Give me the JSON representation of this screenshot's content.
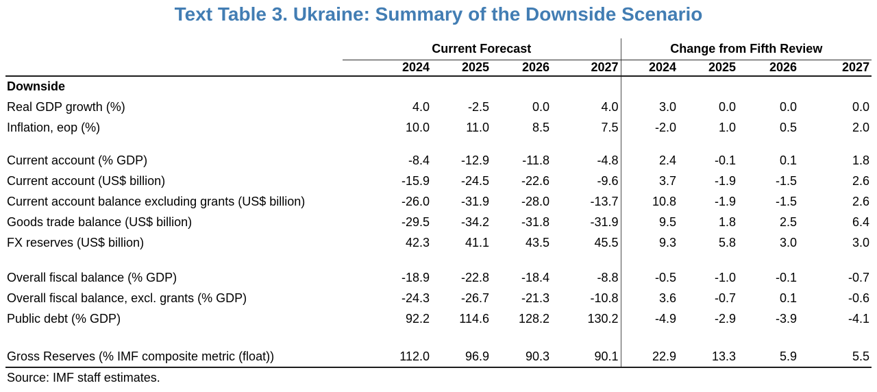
{
  "title": "Text Table 3. Ukraine: Summary of the Downside Scenario",
  "colors": {
    "title_blue": "#427DB3"
  },
  "source": "Source: IMF staff estimates.",
  "table": {
    "group_headers": [
      {
        "label": "Current Forecast",
        "years": [
          "2024",
          "2025",
          "2026",
          "2027"
        ]
      },
      {
        "label": "Change from Fifth Review",
        "years": [
          "2024",
          "2025",
          "2026",
          "2027"
        ]
      }
    ],
    "rows": [
      {
        "type": "section",
        "label": "Downside"
      },
      {
        "type": "data",
        "label": "Real GDP growth (%)",
        "values": [
          "4.0",
          "-2.5",
          "0.0",
          "4.0",
          "3.0",
          "0.0",
          "0.0",
          "0.0"
        ]
      },
      {
        "type": "data",
        "label": "Inflation, eop (%)",
        "values": [
          "10.0",
          "11.0",
          "8.5",
          "7.5",
          "-2.0",
          "1.0",
          "0.5",
          "2.0"
        ]
      },
      {
        "type": "spacer",
        "height": 18
      },
      {
        "type": "data",
        "label": "Current account (% GDP)",
        "values": [
          "-8.4",
          "-12.9",
          "-11.8",
          "-4.8",
          "2.4",
          "-0.1",
          "0.1",
          "1.8"
        ]
      },
      {
        "type": "data",
        "label": "Current account (US$ billion)",
        "values": [
          "-15.9",
          "-24.5",
          "-22.6",
          "-9.6",
          "3.7",
          "-1.9",
          "-1.5",
          "2.6"
        ]
      },
      {
        "type": "data",
        "label": "Current account balance excluding grants (US$ billion)",
        "values": [
          "-26.0",
          "-31.9",
          "-28.0",
          "-13.7",
          "10.8",
          "-1.9",
          "-1.5",
          "2.6"
        ]
      },
      {
        "type": "data",
        "label": "Goods trade balance (US$ billion)",
        "values": [
          "-29.5",
          "-34.2",
          "-31.8",
          "-31.9",
          "9.5",
          "1.8",
          "2.5",
          "6.4"
        ]
      },
      {
        "type": "data",
        "label": "FX reserves (US$ billion)",
        "values": [
          "42.3",
          "41.1",
          "43.5",
          "45.5",
          "9.3",
          "5.8",
          "3.0",
          "3.0"
        ]
      },
      {
        "type": "spacer",
        "height": 21
      },
      {
        "type": "data",
        "label": "Overall fiscal balance (% GDP)",
        "values": [
          "-18.9",
          "-22.8",
          "-18.4",
          "-8.8",
          "-0.5",
          "-1.0",
          "-0.1",
          "-0.7"
        ]
      },
      {
        "type": "data",
        "label": "Overall fiscal balance, excl. grants (% GDP)",
        "values": [
          "-24.3",
          "-26.7",
          "-21.3",
          "-10.8",
          "3.6",
          "-0.7",
          "0.1",
          "-0.6"
        ]
      },
      {
        "type": "data",
        "label": "Public debt (% GDP)",
        "values": [
          "92.2",
          "114.6",
          "128.2",
          "130.2",
          "-4.9",
          "-2.9",
          "-3.9",
          "-4.1"
        ]
      },
      {
        "type": "spacer",
        "height": 26
      },
      {
        "type": "data",
        "label": "Gross Reserves (% IMF composite metric (float))",
        "values": [
          "112.0",
          "96.9",
          "90.3",
          "90.1",
          "22.9",
          "13.3",
          "5.9",
          "5.5"
        ]
      }
    ]
  }
}
